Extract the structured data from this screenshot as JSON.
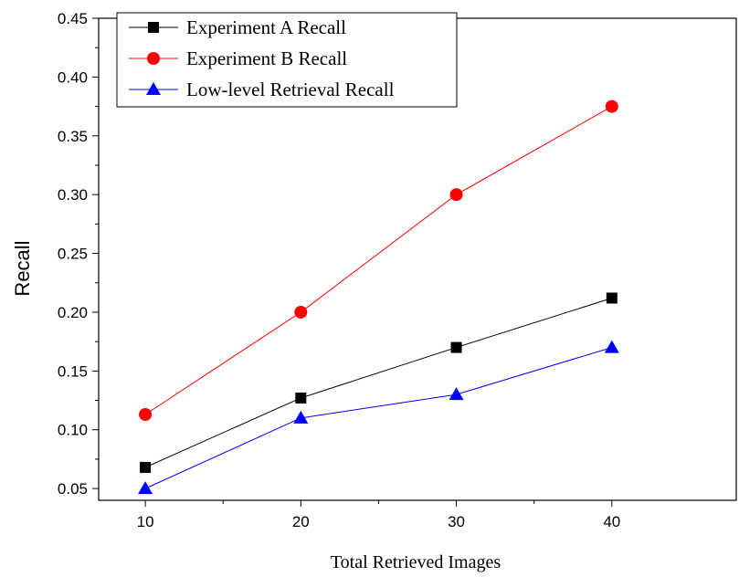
{
  "chart_data": {
    "type": "line",
    "x": [
      10,
      20,
      30,
      40
    ],
    "xlabel": "Total Retrieved Images",
    "ylabel": "Recall",
    "xlim": [
      7,
      48
    ],
    "ylim": [
      0.04,
      0.45
    ],
    "xticks": [
      10,
      20,
      30,
      40
    ],
    "xtick_labels": [
      "10",
      "20",
      "30",
      "40"
    ],
    "yticks": [
      0.05,
      0.1,
      0.15,
      0.2,
      0.25,
      0.3,
      0.35,
      0.4,
      0.45
    ],
    "ytick_labels": [
      "0.05",
      "0.10",
      "0.15",
      "0.20",
      "0.25",
      "0.30",
      "0.35",
      "0.40",
      "0.45"
    ],
    "grid": false,
    "legend_position": "top-left",
    "series": [
      {
        "name": "Experiment A Recall",
        "values": [
          0.068,
          0.127,
          0.17,
          0.212
        ],
        "color": "#000000",
        "marker": "square"
      },
      {
        "name": "Experiment B Recall",
        "values": [
          0.113,
          0.2,
          0.3,
          0.375
        ],
        "color": "#ff0000",
        "marker": "circle"
      },
      {
        "name": "Low-level Retrieval Recall",
        "values": [
          0.05,
          0.11,
          0.13,
          0.17
        ],
        "color": "#0000ff",
        "marker": "triangle"
      }
    ]
  }
}
